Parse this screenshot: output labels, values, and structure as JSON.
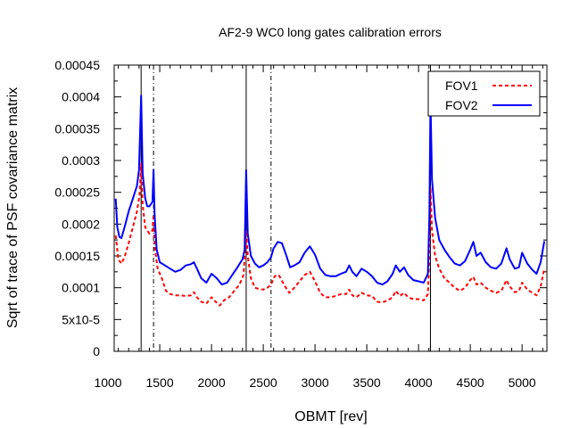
{
  "chart_data": {
    "type": "line",
    "title": "AF2-9 WC0 long gates calibration errors",
    "xlabel": "OBMT [rev]",
    "ylabel": "Sqrt of trace of PSF covariance matrix",
    "xlim": [
      1060,
      5240
    ],
    "ylim": [
      0,
      0.00045
    ],
    "xticks": [
      1000,
      1500,
      2000,
      2500,
      3000,
      3500,
      4000,
      4500,
      5000
    ],
    "xtick_labels": [
      "1000",
      "1500",
      "2000",
      "2500",
      "3000",
      "3500",
      "4000",
      "4500",
      "5000"
    ],
    "yticks": [
      0,
      5e-05,
      0.0001,
      0.00015,
      0.0002,
      0.00025,
      0.0003,
      0.00035,
      0.0004,
      0.00045
    ],
    "ytick_labels": [
      "0",
      "5x10-5",
      "0.0001",
      "0.00015",
      "0.0002",
      "0.00025",
      "0.0003",
      "0.00035",
      "0.0004",
      "0.00045"
    ],
    "legend_position": "top-right",
    "vlines_solid": [
      1320,
      2335,
      4115
    ],
    "vlines_dashed": [
      1440,
      2575
    ],
    "series": [
      {
        "name": "FOV1",
        "color": "#ff0000",
        "style": "dashed",
        "points": [
          [
            1075,
            0.000182
          ],
          [
            1100,
            0.000145
          ],
          [
            1130,
            0.000138
          ],
          [
            1160,
            0.000148
          ],
          [
            1200,
            0.00017
          ],
          [
            1240,
            0.000195
          ],
          [
            1280,
            0.00022
          ],
          [
            1305,
            0.000245
          ],
          [
            1320,
            0.000295
          ],
          [
            1335,
            0.00023
          ],
          [
            1360,
            0.000195
          ],
          [
            1400,
            0.000185
          ],
          [
            1430,
            0.00019
          ],
          [
            1440,
            0.000215
          ],
          [
            1450,
            0.000165
          ],
          [
            1480,
            0.00013
          ],
          [
            1520,
            0.000115
          ],
          [
            1560,
            9.5e-05
          ],
          [
            1600,
            9e-05
          ],
          [
            1650,
            8.8e-05
          ],
          [
            1700,
            8.8e-05
          ],
          [
            1750,
            8.7e-05
          ],
          [
            1800,
            8.8e-05
          ],
          [
            1830,
            9.3e-05
          ],
          [
            1860,
            8.5e-05
          ],
          [
            1900,
            7.8e-05
          ],
          [
            1950,
            7.5e-05
          ],
          [
            2000,
            8.5e-05
          ],
          [
            2040,
            7.8e-05
          ],
          [
            2080,
            7.2e-05
          ],
          [
            2120,
            8e-05
          ],
          [
            2170,
            8.5e-05
          ],
          [
            2220,
            9.5e-05
          ],
          [
            2270,
            0.000105
          ],
          [
            2310,
            0.00012
          ],
          [
            2335,
            0.00019
          ],
          [
            2350,
            0.00015
          ],
          [
            2380,
            0.000115
          ],
          [
            2420,
            0.0001
          ],
          [
            2460,
            9.8e-05
          ],
          [
            2500,
            9.7e-05
          ],
          [
            2540,
            0.0001
          ],
          [
            2575,
            0.000105
          ],
          [
            2610,
            0.000118
          ],
          [
            2650,
            0.00012
          ],
          [
            2700,
            0.000105
          ],
          [
            2750,
            9.2e-05
          ],
          [
            2800,
            0.0001
          ],
          [
            2850,
            0.00011
          ],
          [
            2900,
            0.00012
          ],
          [
            2950,
            0.000125
          ],
          [
            3000,
            0.00011
          ],
          [
            3050,
            9.2e-05
          ],
          [
            3100,
            8.5e-05
          ],
          [
            3150,
            8.5e-05
          ],
          [
            3200,
            8.7e-05
          ],
          [
            3250,
            9e-05
          ],
          [
            3300,
            9e-05
          ],
          [
            3330,
            9.7e-05
          ],
          [
            3360,
            8.8e-05
          ],
          [
            3400,
            8.5e-05
          ],
          [
            3450,
            9.2e-05
          ],
          [
            3500,
            8.8e-05
          ],
          [
            3550,
            8.7e-05
          ],
          [
            3600,
            7.8e-05
          ],
          [
            3650,
            7.7e-05
          ],
          [
            3700,
            8e-05
          ],
          [
            3750,
            8.5e-05
          ],
          [
            3780,
            9.5e-05
          ],
          [
            3820,
            8.7e-05
          ],
          [
            3860,
            9.2e-05
          ],
          [
            3900,
            8.5e-05
          ],
          [
            3950,
            8.2e-05
          ],
          [
            4000,
            8.2e-05
          ],
          [
            4050,
            8e-05
          ],
          [
            4090,
            9e-05
          ],
          [
            4105,
            0.00015
          ],
          [
            4115,
            0.000258
          ],
          [
            4130,
            0.00019
          ],
          [
            4160,
            0.00015
          ],
          [
            4200,
            0.00013
          ],
          [
            4250,
            0.000115
          ],
          [
            4300,
            0.000108
          ],
          [
            4350,
            0.0001
          ],
          [
            4400,
            9.5e-05
          ],
          [
            4450,
            0.0001
          ],
          [
            4500,
            0.000112
          ],
          [
            4530,
            0.000117
          ],
          [
            4560,
            0.000105
          ],
          [
            4600,
            0.000108
          ],
          [
            4650,
            0.0001
          ],
          [
            4700,
            9.5e-05
          ],
          [
            4750,
            9.2e-05
          ],
          [
            4800,
            9.5e-05
          ],
          [
            4850,
            0.000112
          ],
          [
            4880,
            0.000102
          ],
          [
            4930,
            9.3e-05
          ],
          [
            4970,
            9.5e-05
          ],
          [
            5000,
            0.000108
          ],
          [
            5050,
            9.7e-05
          ],
          [
            5100,
            9.2e-05
          ],
          [
            5140,
            8.8e-05
          ],
          [
            5180,
            0.000102
          ],
          [
            5215,
            0.00013
          ]
        ]
      },
      {
        "name": "FOV2",
        "color": "#0000ff",
        "style": "solid",
        "points": [
          [
            1075,
            0.00024
          ],
          [
            1090,
            0.000195
          ],
          [
            1110,
            0.00018
          ],
          [
            1130,
            0.000178
          ],
          [
            1160,
            0.000195
          ],
          [
            1200,
            0.00022
          ],
          [
            1240,
            0.00024
          ],
          [
            1280,
            0.00026
          ],
          [
            1300,
            0.000285
          ],
          [
            1320,
            0.000402
          ],
          [
            1335,
            0.00028
          ],
          [
            1360,
            0.00024
          ],
          [
            1380,
            0.000228
          ],
          [
            1400,
            0.000228
          ],
          [
            1430,
            0.000235
          ],
          [
            1440,
            0.000285
          ],
          [
            1450,
            0.000215
          ],
          [
            1470,
            0.00016
          ],
          [
            1500,
            0.00014
          ],
          [
            1550,
            0.000135
          ],
          [
            1600,
            0.00013
          ],
          [
            1650,
            0.000125
          ],
          [
            1700,
            0.000128
          ],
          [
            1750,
            0.000135
          ],
          [
            1800,
            0.000137
          ],
          [
            1830,
            0.00014
          ],
          [
            1860,
            0.00013
          ],
          [
            1900,
            0.000115
          ],
          [
            1950,
            0.000108
          ],
          [
            2000,
            0.000122
          ],
          [
            2050,
            0.000115
          ],
          [
            2100,
            0.000105
          ],
          [
            2150,
            0.000108
          ],
          [
            2200,
            0.00012
          ],
          [
            2250,
            0.000132
          ],
          [
            2300,
            0.000145
          ],
          [
            2320,
            0.00016
          ],
          [
            2335,
            0.000285
          ],
          [
            2350,
            0.000185
          ],
          [
            2380,
            0.00015
          ],
          [
            2420,
            0.000138
          ],
          [
            2460,
            0.000132
          ],
          [
            2500,
            0.000135
          ],
          [
            2540,
            0.00014
          ],
          [
            2575,
            0.000148
          ],
          [
            2600,
            0.000162
          ],
          [
            2640,
            0.000172
          ],
          [
            2680,
            0.00017
          ],
          [
            2720,
            0.000152
          ],
          [
            2760,
            0.000132
          ],
          [
            2800,
            0.000135
          ],
          [
            2850,
            0.00014
          ],
          [
            2900,
            0.000155
          ],
          [
            2950,
            0.000165
          ],
          [
            3000,
            0.000152
          ],
          [
            3050,
            0.00013
          ],
          [
            3100,
            0.00012
          ],
          [
            3150,
            0.000118
          ],
          [
            3200,
            0.000118
          ],
          [
            3250,
            0.000122
          ],
          [
            3300,
            0.000125
          ],
          [
            3330,
            0.000135
          ],
          [
            3360,
            0.000125
          ],
          [
            3400,
            0.000118
          ],
          [
            3450,
            0.00013
          ],
          [
            3500,
            0.000125
          ],
          [
            3550,
            0.000118
          ],
          [
            3600,
            0.000108
          ],
          [
            3650,
            0.000105
          ],
          [
            3700,
            0.00011
          ],
          [
            3750,
            0.000122
          ],
          [
            3780,
            0.000135
          ],
          [
            3820,
            0.000125
          ],
          [
            3860,
            0.000132
          ],
          [
            3900,
            0.00012
          ],
          [
            3950,
            0.000112
          ],
          [
            4000,
            0.00011
          ],
          [
            4050,
            0.000108
          ],
          [
            4090,
            0.000122
          ],
          [
            4105,
            0.000215
          ],
          [
            4115,
            0.000395
          ],
          [
            4130,
            0.00027
          ],
          [
            4160,
            0.00021
          ],
          [
            4200,
            0.000175
          ],
          [
            4250,
            0.00016
          ],
          [
            4300,
            0.000148
          ],
          [
            4350,
            0.000138
          ],
          [
            4400,
            0.000135
          ],
          [
            4450,
            0.000142
          ],
          [
            4500,
            0.00016
          ],
          [
            4530,
            0.000172
          ],
          [
            4560,
            0.00015
          ],
          [
            4600,
            0.000155
          ],
          [
            4650,
            0.00014
          ],
          [
            4700,
            0.000132
          ],
          [
            4750,
            0.00013
          ],
          [
            4800,
            0.000138
          ],
          [
            4850,
            0.000162
          ],
          [
            4880,
            0.000145
          ],
          [
            4930,
            0.00013
          ],
          [
            4970,
            0.000132
          ],
          [
            5000,
            0.000155
          ],
          [
            5050,
            0.000138
          ],
          [
            5100,
            0.000128
          ],
          [
            5140,
            0.000122
          ],
          [
            5180,
            0.00014
          ],
          [
            5215,
            0.000173
          ]
        ]
      }
    ]
  }
}
